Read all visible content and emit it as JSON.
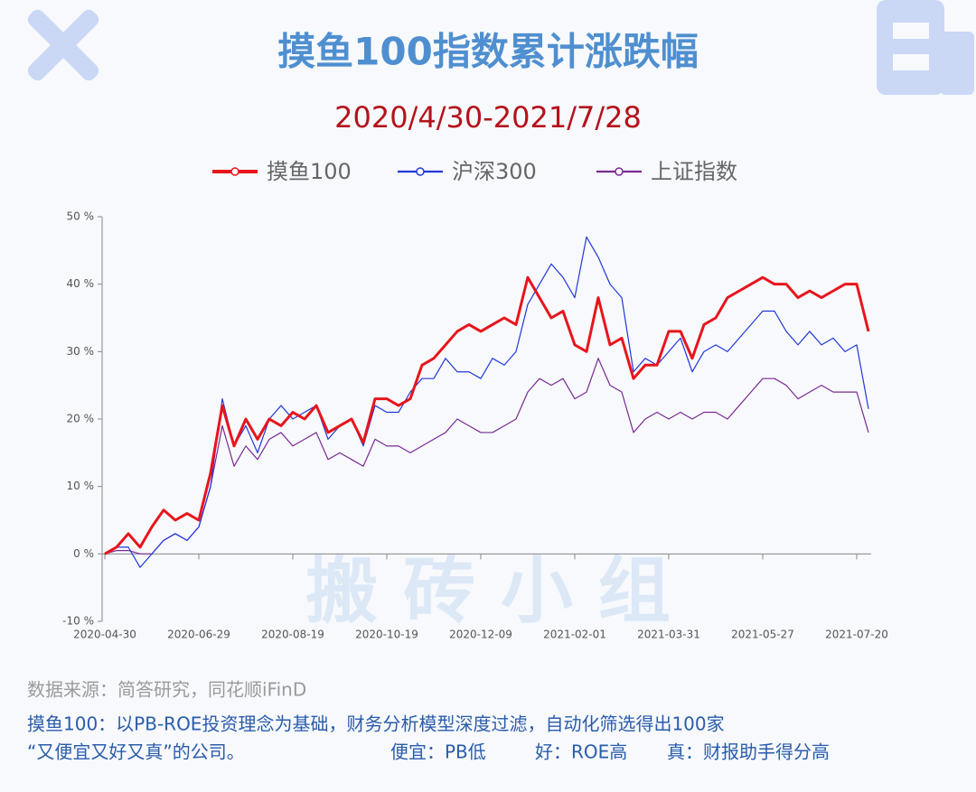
{
  "chart_data": {
    "type": "line",
    "title": "摸鱼100指数累计涨跌幅",
    "subtitle": "2020/4/30-2021/7/28",
    "categories": [
      "2020-04-30",
      null,
      null,
      null,
      null,
      null,
      null,
      null,
      "2020-06-29",
      null,
      null,
      null,
      null,
      null,
      null,
      null,
      "2020-08-19",
      null,
      null,
      null,
      null,
      null,
      null,
      null,
      "2020-10-19",
      null,
      null,
      null,
      null,
      null,
      null,
      null,
      "2020-12-09",
      null,
      null,
      null,
      null,
      null,
      null,
      null,
      "2021-02-01",
      null,
      null,
      null,
      null,
      null,
      null,
      null,
      "2021-03-31",
      null,
      null,
      null,
      null,
      null,
      null,
      null,
      "2021-05-27",
      null,
      null,
      null,
      null,
      null,
      null,
      null,
      "2021-07-20",
      null
    ],
    "series": [
      {
        "name": "摸鱼100",
        "color": "#e8141c",
        "width": 3,
        "values": [
          0,
          1,
          3,
          1,
          4,
          6.5,
          5,
          6,
          5,
          12,
          22,
          16,
          20,
          17,
          20,
          19,
          21,
          20,
          22,
          18,
          19,
          20,
          16.5,
          23,
          23,
          22,
          23,
          28,
          29,
          31,
          33,
          34,
          33,
          34,
          35,
          34,
          41,
          38,
          35,
          36,
          31,
          30,
          38,
          31,
          32,
          26,
          28,
          28,
          33,
          33,
          29,
          34,
          35,
          38,
          39,
          40,
          41,
          40,
          40,
          38,
          39,
          38,
          39,
          40,
          40,
          33
        ]
      },
      {
        "name": "沪深300",
        "color": "#2238d8",
        "width": 1.2,
        "values": [
          0,
          1,
          1,
          -2,
          0,
          2,
          3,
          2,
          4,
          10,
          23,
          16,
          19,
          15,
          20,
          22,
          20,
          21,
          22,
          17,
          19,
          20,
          16,
          22,
          21,
          21,
          24,
          26,
          26,
          29,
          27,
          27,
          26,
          29,
          28,
          30,
          37,
          40,
          43,
          41,
          38,
          47,
          44,
          40,
          38,
          27,
          29,
          28,
          30,
          32,
          27,
          30,
          31,
          30,
          32,
          34,
          36,
          36,
          33,
          31,
          33,
          31,
          32,
          30,
          31,
          21.5
        ]
      },
      {
        "name": "上证指数",
        "color": "#7a2a92",
        "width": 1.2,
        "values": [
          0,
          0.5,
          0.5,
          0,
          0,
          2,
          3,
          2,
          4,
          10,
          19,
          13,
          16,
          14,
          17,
          18,
          16,
          17,
          18,
          14,
          15,
          14,
          13,
          17,
          16,
          16,
          15,
          16,
          17,
          18,
          20,
          19,
          18,
          18,
          19,
          20,
          24,
          26,
          25,
          26,
          23,
          24,
          29,
          25,
          24,
          18,
          20,
          21,
          20,
          21,
          20,
          21,
          21,
          20,
          22,
          24,
          26,
          26,
          25,
          23,
          24,
          25,
          24,
          24,
          24,
          18
        ]
      }
    ],
    "ylim": [
      -10,
      50
    ],
    "yticks": [
      {
        "value": -10,
        "label": "-10 %"
      },
      {
        "value": 0,
        "label": "0 %"
      },
      {
        "value": 10,
        "label": "10 %"
      },
      {
        "value": 20,
        "label": "20 %"
      },
      {
        "value": 30,
        "label": "30 %"
      },
      {
        "value": 40,
        "label": "40 %"
      },
      {
        "value": 50,
        "label": "50 %"
      }
    ],
    "watermark": "搬 砖 小 组",
    "source": "数据来源：简答研究，同花顺iFinD",
    "notes": [
      "摸鱼100：以PB-ROE投资理念为基础，财务分析模型深度过滤，自动化筛选得出100家",
      "“又便宜又好又真”的公司。",
      "便宜：PB低",
      "好：ROE高",
      "真：财报助手得分高"
    ]
  }
}
